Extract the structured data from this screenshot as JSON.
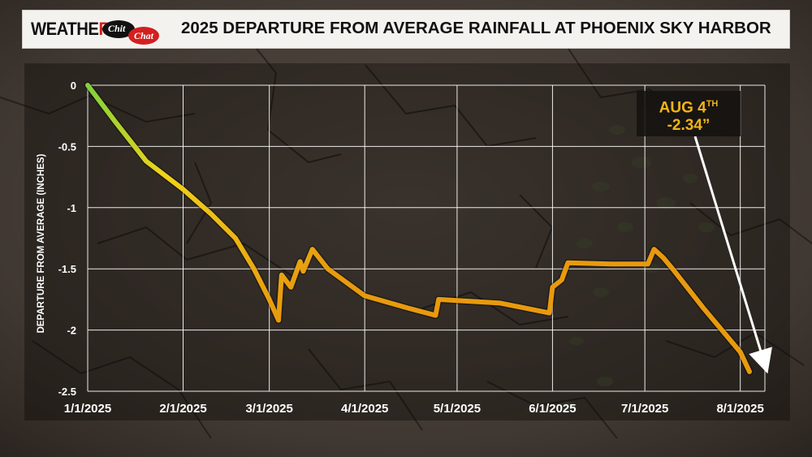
{
  "header": {
    "logo_weather": "WEATHE",
    "logo_r": "R",
    "logo_chit": "Chit",
    "logo_chat": "Chat",
    "title": "2025 DEPARTURE FROM AVERAGE RAINFALL AT PHOENIX SKY HARBOR"
  },
  "callout": {
    "date_main": "AUG 4",
    "date_suffix": "TH",
    "value": "-2.34”"
  },
  "colors": {
    "line_start": "#7ed33a",
    "line_mid": "#f0d21a",
    "line_end": "#e89a0e",
    "callout_text": "#f2b318",
    "grid": "#ffffff"
  },
  "chart_data": {
    "type": "line",
    "title": "2025 DEPARTURE FROM AVERAGE RAINFALL AT PHOENIX SKY HARBOR",
    "xlabel": "",
    "ylabel": "DEPARTURE FROM AVERAGE (INCHES)",
    "x_tick_labels": [
      "1/1/2025",
      "2/1/2025",
      "3/1/2025",
      "4/1/2025",
      "5/1/2025",
      "6/1/2025",
      "7/1/2025",
      "8/1/2025"
    ],
    "x_ticks": [
      "2025-01-01",
      "2025-02-01",
      "2025-03-01",
      "2025-04-01",
      "2025-05-01",
      "2025-06-01",
      "2025-07-01",
      "2025-08-01"
    ],
    "y_tick_labels": [
      "0",
      "-0.5",
      "-1",
      "-1.5",
      "-2",
      "-2.5"
    ],
    "ylim": [
      -2.5,
      0
    ],
    "xlim": [
      "2025-01-01",
      "2025-08-09"
    ],
    "grid": true,
    "series": [
      {
        "points": [
          [
            "2025-01-01",
            0.0
          ],
          [
            "2025-01-10",
            -0.3
          ],
          [
            "2025-01-20",
            -0.62
          ],
          [
            "2025-02-01",
            -0.85
          ],
          [
            "2025-02-10",
            -1.05
          ],
          [
            "2025-02-18",
            -1.25
          ],
          [
            "2025-02-24",
            -1.5
          ],
          [
            "2025-03-01",
            -1.75
          ],
          [
            "2025-03-04",
            -1.92
          ],
          [
            "2025-03-05",
            -1.55
          ],
          [
            "2025-03-08",
            -1.65
          ],
          [
            "2025-03-11",
            -1.44
          ],
          [
            "2025-03-12",
            -1.52
          ],
          [
            "2025-03-15",
            -1.34
          ],
          [
            "2025-03-20",
            -1.5
          ],
          [
            "2025-04-01",
            -1.72
          ],
          [
            "2025-04-15",
            -1.82
          ],
          [
            "2025-04-24",
            -1.88
          ],
          [
            "2025-04-25",
            -1.75
          ],
          [
            "2025-05-15",
            -1.78
          ],
          [
            "2025-05-31",
            -1.86
          ],
          [
            "2025-06-01",
            -1.65
          ],
          [
            "2025-06-04",
            -1.59
          ],
          [
            "2025-06-06",
            -1.45
          ],
          [
            "2025-06-20",
            -1.46
          ],
          [
            "2025-06-30",
            -1.46
          ],
          [
            "2025-07-02",
            -1.46
          ],
          [
            "2025-07-04",
            -1.34
          ],
          [
            "2025-07-07",
            -1.41
          ],
          [
            "2025-07-10",
            -1.5
          ],
          [
            "2025-07-20",
            -1.82
          ],
          [
            "2025-08-01",
            -2.18
          ],
          [
            "2025-08-04",
            -2.34
          ]
        ]
      }
    ],
    "annotations": [
      {
        "text": "AUG 4TH -2.34”",
        "x": "2025-08-04",
        "y": -2.34
      }
    ]
  }
}
